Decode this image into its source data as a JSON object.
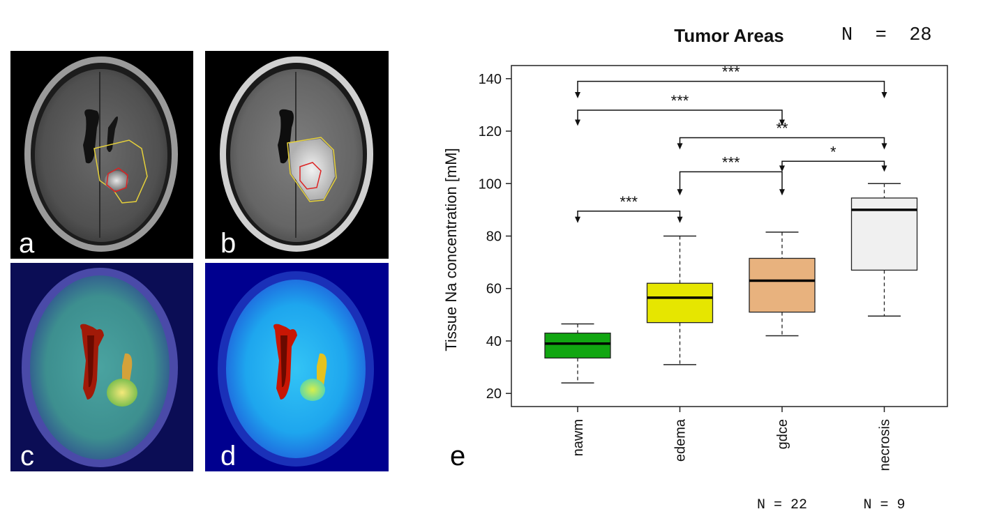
{
  "panels": {
    "a": {
      "letter": "a"
    },
    "b": {
      "letter": "b"
    },
    "c": {
      "letter": "c"
    },
    "d": {
      "letter": "d"
    },
    "e": {
      "letter": "e"
    }
  },
  "chart_data": {
    "type": "box",
    "title": "Tumor Areas",
    "n_total": "N  =  28",
    "ylabel": "Tissue Na concentration [mM]",
    "xlabel": "",
    "ylim": [
      15,
      145
    ],
    "yticks": [
      20,
      40,
      60,
      80,
      100,
      120,
      140
    ],
    "categories": [
      "nawm",
      "edema",
      "gdce",
      "necrosis"
    ],
    "boxes": [
      {
        "category": "nawm",
        "whisker_low": 24,
        "q1": 33.5,
        "median": 39,
        "q3": 43,
        "whisker_high": 46.5,
        "color": "#11a611"
      },
      {
        "category": "edema",
        "whisker_low": 31,
        "q1": 47,
        "median": 56.5,
        "q3": 62,
        "whisker_high": 80,
        "color": "#e6e600"
      },
      {
        "category": "gdce",
        "whisker_low": 42,
        "q1": 51,
        "median": 63,
        "q3": 71.5,
        "whisker_high": 81.5,
        "color": "#e8b27e"
      },
      {
        "category": "necrosis",
        "whisker_low": 49.5,
        "q1": 67,
        "median": 90,
        "q3": 94.5,
        "whisker_high": 100,
        "color": "#f0f0f0"
      }
    ],
    "group_counts": [
      {
        "category": "gdce",
        "label": "N  =  22"
      },
      {
        "category": "necrosis",
        "label": "N  =  9"
      }
    ],
    "significance": [
      {
        "from": "nawm",
        "to": "edema",
        "y_bracket": 89.5,
        "y_arrow": 85,
        "label": "***"
      },
      {
        "from": "edema",
        "to": "gdce",
        "y_bracket": 104.5,
        "y_arrow": 95.5,
        "label": "***"
      },
      {
        "from": "gdce",
        "to": "necrosis",
        "y_bracket": 108.5,
        "y_arrow": 104.5,
        "label": "*"
      },
      {
        "from": "edema",
        "to": "necrosis",
        "y_bracket": 117.5,
        "y_arrow": 113,
        "label": "**"
      },
      {
        "from": "nawm",
        "to": "gdce",
        "y_bracket": 128,
        "y_arrow": 122,
        "label": "***"
      },
      {
        "from": "nawm",
        "to": "necrosis",
        "y_bracket": 139,
        "y_arrow": 132.5,
        "label": "***"
      }
    ]
  }
}
